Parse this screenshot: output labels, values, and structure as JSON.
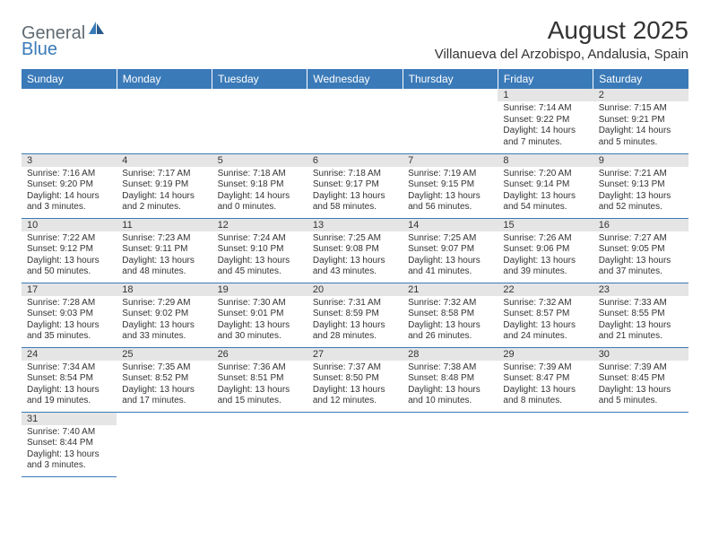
{
  "logo": {
    "general": "General",
    "blue": "Blue"
  },
  "title": "August 2025",
  "location": "Villanueva del Arzobispo, Andalusia, Spain",
  "colors": {
    "header_bg": "#3a7ab8",
    "header_text": "#ffffff",
    "daynum_bg": "#e5e5e5",
    "border": "#3a7ab8",
    "text": "#333333",
    "logo_gray": "#5f6a72",
    "logo_blue": "#3a7ab8",
    "background": "#ffffff"
  },
  "weekdays": [
    "Sunday",
    "Monday",
    "Tuesday",
    "Wednesday",
    "Thursday",
    "Friday",
    "Saturday"
  ],
  "weeks": [
    [
      null,
      null,
      null,
      null,
      null,
      {
        "n": "1",
        "sr": "Sunrise: 7:14 AM",
        "ss": "Sunset: 9:22 PM",
        "dl": "Daylight: 14 hours and 7 minutes."
      },
      {
        "n": "2",
        "sr": "Sunrise: 7:15 AM",
        "ss": "Sunset: 9:21 PM",
        "dl": "Daylight: 14 hours and 5 minutes."
      }
    ],
    [
      {
        "n": "3",
        "sr": "Sunrise: 7:16 AM",
        "ss": "Sunset: 9:20 PM",
        "dl": "Daylight: 14 hours and 3 minutes."
      },
      {
        "n": "4",
        "sr": "Sunrise: 7:17 AM",
        "ss": "Sunset: 9:19 PM",
        "dl": "Daylight: 14 hours and 2 minutes."
      },
      {
        "n": "5",
        "sr": "Sunrise: 7:18 AM",
        "ss": "Sunset: 9:18 PM",
        "dl": "Daylight: 14 hours and 0 minutes."
      },
      {
        "n": "6",
        "sr": "Sunrise: 7:18 AM",
        "ss": "Sunset: 9:17 PM",
        "dl": "Daylight: 13 hours and 58 minutes."
      },
      {
        "n": "7",
        "sr": "Sunrise: 7:19 AM",
        "ss": "Sunset: 9:15 PM",
        "dl": "Daylight: 13 hours and 56 minutes."
      },
      {
        "n": "8",
        "sr": "Sunrise: 7:20 AM",
        "ss": "Sunset: 9:14 PM",
        "dl": "Daylight: 13 hours and 54 minutes."
      },
      {
        "n": "9",
        "sr": "Sunrise: 7:21 AM",
        "ss": "Sunset: 9:13 PM",
        "dl": "Daylight: 13 hours and 52 minutes."
      }
    ],
    [
      {
        "n": "10",
        "sr": "Sunrise: 7:22 AM",
        "ss": "Sunset: 9:12 PM",
        "dl": "Daylight: 13 hours and 50 minutes."
      },
      {
        "n": "11",
        "sr": "Sunrise: 7:23 AM",
        "ss": "Sunset: 9:11 PM",
        "dl": "Daylight: 13 hours and 48 minutes."
      },
      {
        "n": "12",
        "sr": "Sunrise: 7:24 AM",
        "ss": "Sunset: 9:10 PM",
        "dl": "Daylight: 13 hours and 45 minutes."
      },
      {
        "n": "13",
        "sr": "Sunrise: 7:25 AM",
        "ss": "Sunset: 9:08 PM",
        "dl": "Daylight: 13 hours and 43 minutes."
      },
      {
        "n": "14",
        "sr": "Sunrise: 7:25 AM",
        "ss": "Sunset: 9:07 PM",
        "dl": "Daylight: 13 hours and 41 minutes."
      },
      {
        "n": "15",
        "sr": "Sunrise: 7:26 AM",
        "ss": "Sunset: 9:06 PM",
        "dl": "Daylight: 13 hours and 39 minutes."
      },
      {
        "n": "16",
        "sr": "Sunrise: 7:27 AM",
        "ss": "Sunset: 9:05 PM",
        "dl": "Daylight: 13 hours and 37 minutes."
      }
    ],
    [
      {
        "n": "17",
        "sr": "Sunrise: 7:28 AM",
        "ss": "Sunset: 9:03 PM",
        "dl": "Daylight: 13 hours and 35 minutes."
      },
      {
        "n": "18",
        "sr": "Sunrise: 7:29 AM",
        "ss": "Sunset: 9:02 PM",
        "dl": "Daylight: 13 hours and 33 minutes."
      },
      {
        "n": "19",
        "sr": "Sunrise: 7:30 AM",
        "ss": "Sunset: 9:01 PM",
        "dl": "Daylight: 13 hours and 30 minutes."
      },
      {
        "n": "20",
        "sr": "Sunrise: 7:31 AM",
        "ss": "Sunset: 8:59 PM",
        "dl": "Daylight: 13 hours and 28 minutes."
      },
      {
        "n": "21",
        "sr": "Sunrise: 7:32 AM",
        "ss": "Sunset: 8:58 PM",
        "dl": "Daylight: 13 hours and 26 minutes."
      },
      {
        "n": "22",
        "sr": "Sunrise: 7:32 AM",
        "ss": "Sunset: 8:57 PM",
        "dl": "Daylight: 13 hours and 24 minutes."
      },
      {
        "n": "23",
        "sr": "Sunrise: 7:33 AM",
        "ss": "Sunset: 8:55 PM",
        "dl": "Daylight: 13 hours and 21 minutes."
      }
    ],
    [
      {
        "n": "24",
        "sr": "Sunrise: 7:34 AM",
        "ss": "Sunset: 8:54 PM",
        "dl": "Daylight: 13 hours and 19 minutes."
      },
      {
        "n": "25",
        "sr": "Sunrise: 7:35 AM",
        "ss": "Sunset: 8:52 PM",
        "dl": "Daylight: 13 hours and 17 minutes."
      },
      {
        "n": "26",
        "sr": "Sunrise: 7:36 AM",
        "ss": "Sunset: 8:51 PM",
        "dl": "Daylight: 13 hours and 15 minutes."
      },
      {
        "n": "27",
        "sr": "Sunrise: 7:37 AM",
        "ss": "Sunset: 8:50 PM",
        "dl": "Daylight: 13 hours and 12 minutes."
      },
      {
        "n": "28",
        "sr": "Sunrise: 7:38 AM",
        "ss": "Sunset: 8:48 PM",
        "dl": "Daylight: 13 hours and 10 minutes."
      },
      {
        "n": "29",
        "sr": "Sunrise: 7:39 AM",
        "ss": "Sunset: 8:47 PM",
        "dl": "Daylight: 13 hours and 8 minutes."
      },
      {
        "n": "30",
        "sr": "Sunrise: 7:39 AM",
        "ss": "Sunset: 8:45 PM",
        "dl": "Daylight: 13 hours and 5 minutes."
      }
    ],
    [
      {
        "n": "31",
        "sr": "Sunrise: 7:40 AM",
        "ss": "Sunset: 8:44 PM",
        "dl": "Daylight: 13 hours and 3 minutes."
      },
      null,
      null,
      null,
      null,
      null,
      null
    ]
  ]
}
